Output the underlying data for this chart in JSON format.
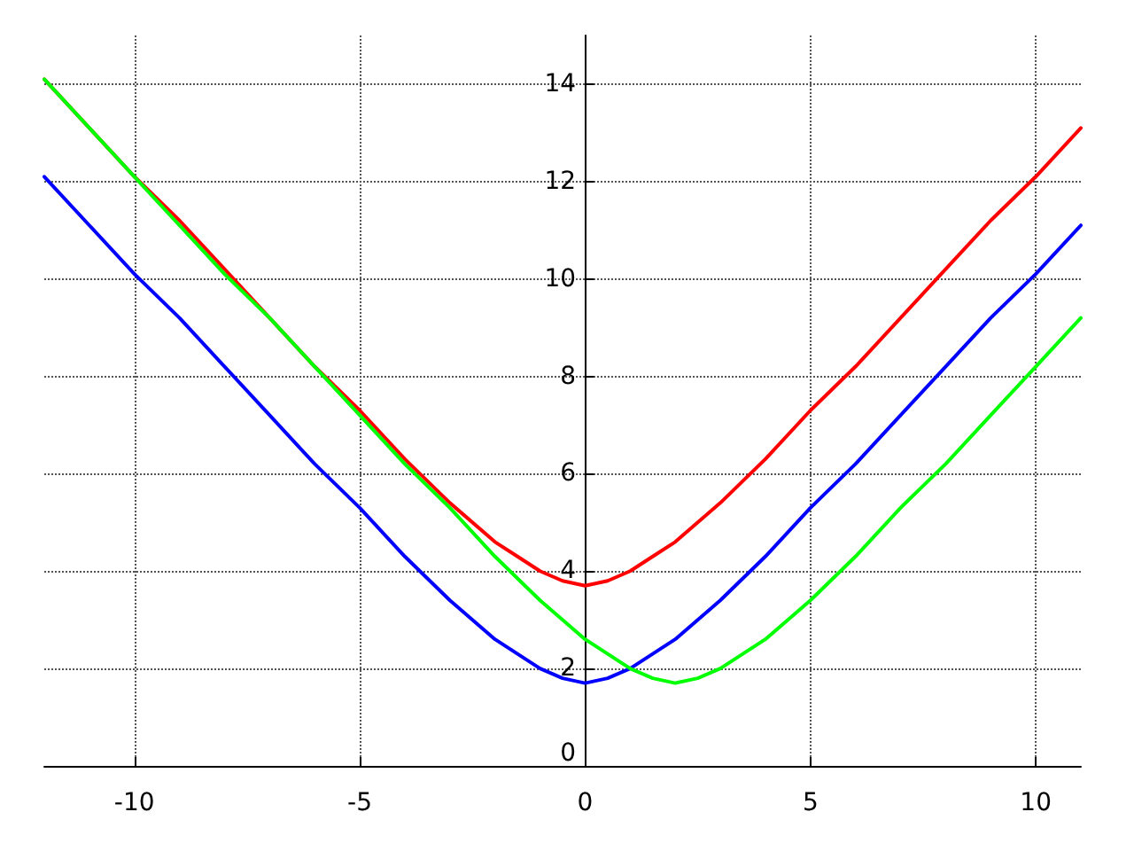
{
  "chart_data": {
    "type": "line",
    "xlim": [
      -12,
      11
    ],
    "xticks": [
      -10,
      -5,
      0,
      5,
      10
    ],
    "ylim": [
      0,
      15
    ],
    "yticks": [
      0,
      2,
      4,
      6,
      8,
      10,
      12,
      14
    ],
    "grid": true,
    "marker": "none",
    "line_style": "solid",
    "series": [
      {
        "color": "#ff0000",
        "x": [
          -12,
          -11,
          -10,
          -9,
          -8,
          -7,
          -6,
          -5,
          -4,
          -3,
          -2,
          -1.5,
          -1,
          -0.5,
          0,
          0.5,
          1,
          1.5,
          2,
          3,
          4,
          5,
          6,
          7,
          8,
          9,
          10,
          11
        ],
        "values": [
          14.1,
          13.1,
          12.1,
          11.2,
          10.2,
          9.2,
          8.2,
          7.3,
          6.3,
          5.4,
          4.6,
          4.3,
          4.0,
          3.8,
          3.7,
          3.8,
          4.0,
          4.3,
          4.6,
          5.4,
          6.3,
          7.3,
          8.2,
          9.2,
          10.2,
          11.2,
          12.1,
          13.1
        ]
      },
      {
        "color": "#0000ff",
        "x": [
          -12,
          -11,
          -10,
          -9,
          -8,
          -7,
          -6,
          -5,
          -4,
          -3,
          -2,
          -1.5,
          -1,
          -0.5,
          0,
          0.5,
          1,
          1.5,
          2,
          3,
          4,
          5,
          6,
          7,
          8,
          9,
          10,
          11
        ],
        "values": [
          12.1,
          11.1,
          10.1,
          9.2,
          8.2,
          7.2,
          6.2,
          5.3,
          4.3,
          3.4,
          2.6,
          2.3,
          2.0,
          1.8,
          1.7,
          1.8,
          2.0,
          2.3,
          2.6,
          3.4,
          4.3,
          5.3,
          6.2,
          7.2,
          8.2,
          9.2,
          10.1,
          11.1
        ]
      },
      {
        "color": "#00ff00",
        "x": [
          -12,
          -11,
          -10,
          -9,
          -8,
          -7,
          -6,
          -5,
          -4,
          -3,
          -2,
          -1,
          0,
          0.5,
          1,
          1.5,
          2,
          2.5,
          3,
          3.5,
          4,
          5,
          6,
          7,
          8,
          9,
          10,
          11
        ],
        "values": [
          14.1,
          13.1,
          12.1,
          11.1,
          10.1,
          9.2,
          8.2,
          7.2,
          6.2,
          5.3,
          4.3,
          3.4,
          2.6,
          2.3,
          2.0,
          1.8,
          1.7,
          1.8,
          2.0,
          2.3,
          2.6,
          3.4,
          4.3,
          5.3,
          6.2,
          7.2,
          8.2,
          9.2
        ]
      }
    ]
  }
}
